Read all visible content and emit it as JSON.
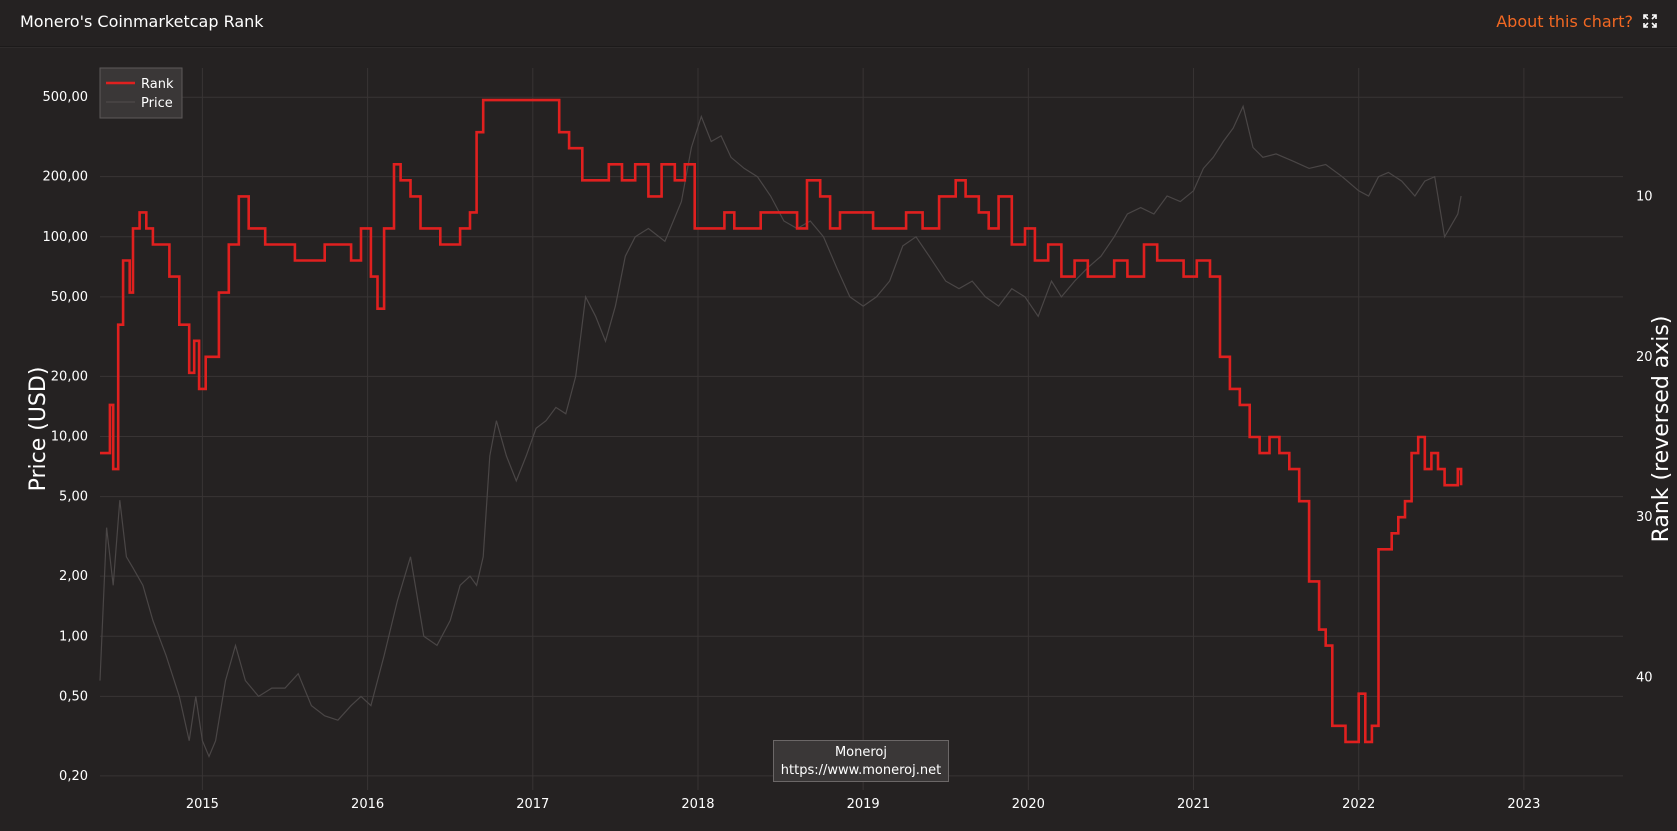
{
  "header": {
    "title": "Monero's Coinmarketcap Rank",
    "about_label": "About this chart?",
    "expand_icon": "expand-icon"
  },
  "credit": {
    "line1": "Moneroj",
    "line2": "https://www.moneroj.net"
  },
  "colors": {
    "background": "#252222",
    "rank_line": "#e0201f",
    "price_line": "#4a4646",
    "grid": "#383434",
    "accent": "#f26822"
  },
  "chart_data": {
    "type": "line",
    "ylabel": "Price (USD)",
    "y2label": "Rank (reversed axis)",
    "legend": [
      "Rank",
      "Price"
    ],
    "legend_position": "top-left",
    "x_ticks": [
      "2015",
      "2016",
      "2017",
      "2018",
      "2019",
      "2020",
      "2021",
      "2022",
      "2023"
    ],
    "y_ticks": [
      "0,20",
      "0,50",
      "1,00",
      "2,00",
      "5,00",
      "10,00",
      "20,00",
      "50,00",
      "100,00",
      "200,00",
      "500,00"
    ],
    "y_tick_values": [
      0.2,
      0.5,
      1,
      2,
      5,
      10,
      20,
      50,
      100,
      200,
      500
    ],
    "y2_ticks": [
      "10",
      "20",
      "30",
      "40"
    ],
    "y2_tick_values": [
      10,
      20,
      30,
      40
    ],
    "x_range": [
      2014.38,
      2023.6
    ],
    "y_range_log": [
      0.17,
      700
    ],
    "y2_range_reversed": [
      2.0,
      47.0
    ],
    "series": [
      {
        "name": "Rank",
        "x": [
          2014.38,
          2014.42,
          2014.44,
          2014.46,
          2014.49,
          2014.52,
          2014.56,
          2014.58,
          2014.62,
          2014.66,
          2014.7,
          2014.75,
          2014.8,
          2014.86,
          2014.92,
          2014.95,
          2014.98,
          2015.02,
          2015.06,
          2015.1,
          2015.16,
          2015.22,
          2015.28,
          2015.32,
          2015.38,
          2015.46,
          2015.56,
          2015.66,
          2015.74,
          2015.82,
          2015.9,
          2015.96,
          2016.02,
          2016.06,
          2016.1,
          2016.16,
          2016.2,
          2016.26,
          2016.32,
          2016.38,
          2016.44,
          2016.5,
          2016.56,
          2016.62,
          2016.66,
          2016.7,
          2016.8,
          2016.9,
          2017.0,
          2017.1,
          2017.16,
          2017.22,
          2017.3,
          2017.38,
          2017.46,
          2017.54,
          2017.62,
          2017.7,
          2017.78,
          2017.86,
          2017.92,
          2017.98,
          2018.06,
          2018.16,
          2018.22,
          2018.3,
          2018.38,
          2018.46,
          2018.54,
          2018.6,
          2018.66,
          2018.74,
          2018.8,
          2018.86,
          2018.96,
          2019.06,
          2019.16,
          2019.26,
          2019.36,
          2019.46,
          2019.56,
          2019.62,
          2019.7,
          2019.76,
          2019.82,
          2019.9,
          2019.98,
          2020.04,
          2020.12,
          2020.2,
          2020.28,
          2020.36,
          2020.44,
          2020.52,
          2020.6,
          2020.7,
          2020.78,
          2020.86,
          2020.94,
          2021.02,
          2021.1,
          2021.16,
          2021.22,
          2021.28,
          2021.34,
          2021.4,
          2021.46,
          2021.52,
          2021.58,
          2021.64,
          2021.7,
          2021.76,
          2021.8,
          2021.84,
          2021.88,
          2021.92,
          2021.96,
          2022.0,
          2022.04,
          2022.08,
          2022.12,
          2022.16,
          2022.2,
          2022.24,
          2022.28,
          2022.32,
          2022.36,
          2022.4,
          2022.44,
          2022.48,
          2022.52,
          2022.56,
          2022.6,
          2022.62
        ],
        "values": [
          26,
          26,
          23,
          27,
          18,
          14,
          16,
          12,
          11,
          12,
          13,
          13,
          15,
          18,
          21,
          19,
          22,
          20,
          20,
          16,
          13,
          10,
          12,
          12,
          13,
          13,
          14,
          14,
          13,
          13,
          14,
          12,
          15,
          17,
          12,
          8,
          9,
          10,
          12,
          12,
          13,
          13,
          12,
          11,
          6,
          4,
          4,
          4,
          4,
          4,
          6,
          7,
          9,
          9,
          8,
          9,
          8,
          10,
          8,
          9,
          8,
          12,
          12,
          11,
          12,
          12,
          11,
          11,
          11,
          12,
          9,
          10,
          12,
          11,
          11,
          12,
          12,
          11,
          12,
          10,
          9,
          10,
          11,
          12,
          10,
          13,
          12,
          14,
          13,
          15,
          14,
          15,
          15,
          14,
          15,
          13,
          14,
          14,
          15,
          14,
          15,
          20,
          22,
          23,
          25,
          26,
          25,
          26,
          27,
          29,
          34,
          37,
          38,
          43,
          43,
          44,
          44,
          41,
          44,
          43,
          32,
          32,
          31,
          30,
          29,
          26,
          25,
          27,
          26,
          27,
          28,
          28,
          27,
          28
        ]
      },
      {
        "name": "Price",
        "x": [
          2014.38,
          2014.42,
          2014.46,
          2014.5,
          2014.54,
          2014.58,
          2014.64,
          2014.7,
          2014.78,
          2014.86,
          2014.92,
          2014.96,
          2015.0,
          2015.04,
          2015.08,
          2015.14,
          2015.2,
          2015.26,
          2015.34,
          2015.42,
          2015.5,
          2015.58,
          2015.66,
          2015.74,
          2015.82,
          2015.9,
          2015.96,
          2016.02,
          2016.1,
          2016.18,
          2016.26,
          2016.34,
          2016.42,
          2016.5,
          2016.56,
          2016.62,
          2016.66,
          2016.7,
          2016.74,
          2016.78,
          2016.84,
          2016.9,
          2016.96,
          2017.02,
          2017.08,
          2017.14,
          2017.2,
          2017.26,
          2017.32,
          2017.38,
          2017.44,
          2017.5,
          2017.56,
          2017.62,
          2017.7,
          2017.8,
          2017.9,
          2017.96,
          2018.02,
          2018.08,
          2018.14,
          2018.2,
          2018.28,
          2018.36,
          2018.44,
          2018.52,
          2018.6,
          2018.68,
          2018.76,
          2018.84,
          2018.92,
          2019.0,
          2019.08,
          2019.16,
          2019.24,
          2019.32,
          2019.4,
          2019.5,
          2019.58,
          2019.66,
          2019.74,
          2019.82,
          2019.9,
          2019.98,
          2020.06,
          2020.14,
          2020.2,
          2020.28,
          2020.36,
          2020.44,
          2020.52,
          2020.6,
          2020.68,
          2020.76,
          2020.84,
          2020.92,
          2021.0,
          2021.06,
          2021.12,
          2021.18,
          2021.24,
          2021.3,
          2021.36,
          2021.42,
          2021.5,
          2021.6,
          2021.7,
          2021.8,
          2021.9,
          2022.0,
          2022.06,
          2022.12,
          2022.18,
          2022.26,
          2022.34,
          2022.4,
          2022.46,
          2022.52,
          2022.6,
          2022.62
        ],
        "values": [
          0.6,
          3.5,
          1.8,
          4.8,
          2.5,
          2.2,
          1.8,
          1.2,
          0.8,
          0.5,
          0.3,
          0.5,
          0.3,
          0.25,
          0.3,
          0.6,
          0.9,
          0.6,
          0.5,
          0.55,
          0.55,
          0.65,
          0.45,
          0.4,
          0.38,
          0.45,
          0.5,
          0.45,
          0.8,
          1.5,
          2.5,
          1.0,
          0.9,
          1.2,
          1.8,
          2.0,
          1.8,
          2.5,
          8.0,
          12.0,
          8.0,
          6.0,
          8.0,
          11.0,
          12.0,
          14.0,
          13.0,
          20.0,
          50.0,
          40.0,
          30.0,
          45.0,
          80.0,
          100.0,
          110.0,
          95.0,
          150.0,
          280.0,
          400.0,
          300.0,
          320.0,
          250.0,
          220.0,
          200.0,
          160.0,
          120.0,
          110.0,
          120.0,
          100.0,
          70.0,
          50.0,
          45.0,
          50.0,
          60.0,
          90.0,
          100.0,
          80.0,
          60.0,
          55.0,
          60.0,
          50.0,
          45.0,
          55.0,
          50.0,
          40.0,
          60.0,
          50.0,
          60.0,
          70.0,
          80.0,
          100.0,
          130.0,
          140.0,
          130.0,
          160.0,
          150.0,
          170.0,
          220.0,
          250.0,
          300.0,
          350.0,
          450.0,
          280.0,
          250.0,
          260.0,
          240.0,
          220.0,
          230.0,
          200.0,
          170.0,
          160.0,
          200.0,
          210.0,
          190.0,
          160.0,
          190.0,
          200.0,
          100.0,
          130.0,
          160.0
        ]
      }
    ]
  }
}
